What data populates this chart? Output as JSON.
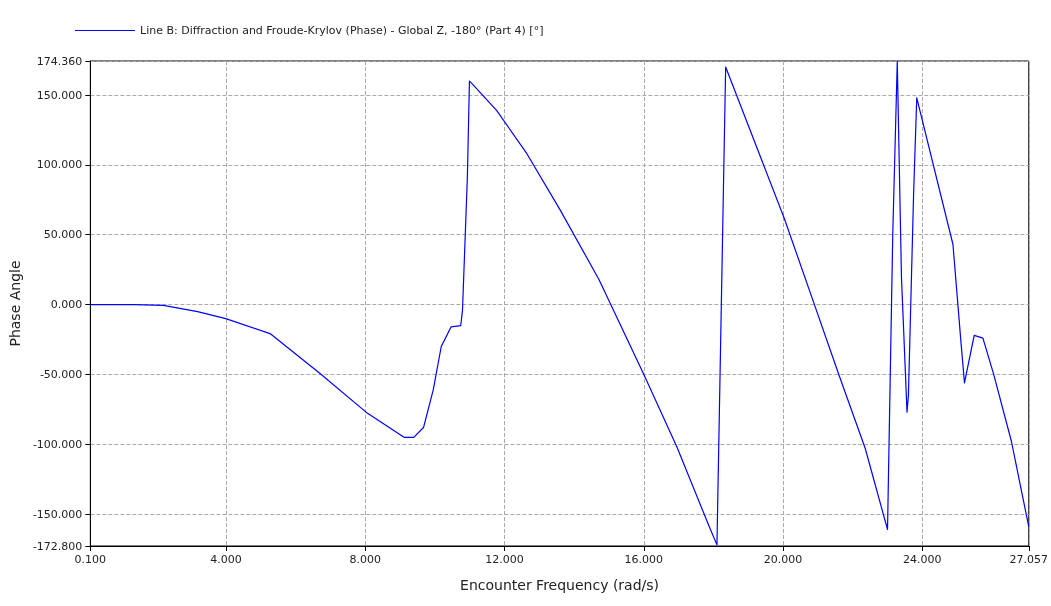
{
  "chart_data": {
    "type": "line",
    "xlabel": "Encounter Frequency (rad/s)",
    "ylabel": "Phase Angle",
    "legend": "top left",
    "grid": true,
    "marker": "none",
    "line_style": "solid",
    "xlim": [
      0.1,
      27.057
    ],
    "ylim": [
      -172.8,
      174.36
    ],
    "xticks": [
      {
        "value": 0.1,
        "label": "0.100"
      },
      {
        "value": 4,
        "label": "4.000"
      },
      {
        "value": 8,
        "label": "8.000"
      },
      {
        "value": 12,
        "label": "12.000"
      },
      {
        "value": 16,
        "label": "16.000"
      },
      {
        "value": 20,
        "label": "20.000"
      },
      {
        "value": 24,
        "label": "24.000"
      },
      {
        "value": 27.057,
        "label": "27.057"
      }
    ],
    "yticks": [
      {
        "value": -172.8,
        "label": "-172.800"
      },
      {
        "value": -150,
        "label": "-150.000"
      },
      {
        "value": -100,
        "label": "-100.000"
      },
      {
        "value": -50,
        "label": "-50.000"
      },
      {
        "value": 0,
        "label": "0.000"
      },
      {
        "value": 50,
        "label": "50.000"
      },
      {
        "value": 100,
        "label": "100.000"
      },
      {
        "value": 150,
        "label": "150.000"
      },
      {
        "value": 174.36,
        "label": "174.360"
      }
    ],
    "series": [
      {
        "name": "Line B: Diffraction and Froude-Krylov (Phase) - Global Z, -180° (Part 4) [°]",
        "color": "#0000ff",
        "x": [
          0.1,
          1.36,
          2.2,
          3.18,
          3.99,
          5.28,
          6.68,
          8.02,
          9.11,
          9.39,
          9.67,
          9.95,
          10.18,
          10.46,
          10.74,
          10.79,
          10.93,
          10.99,
          11.07,
          11.77,
          12.64,
          13.59,
          14.71,
          16.0,
          16.95,
          17.88,
          18.1,
          18.35,
          20.03,
          20.9,
          21.6,
          22.36,
          23.0,
          23.15,
          23.28,
          23.4,
          23.56,
          23.6,
          23.75,
          23.84,
          24.88,
          25.1,
          25.21,
          25.49,
          25.74,
          26.05,
          26.56,
          27.057
        ],
        "values": [
          0,
          0,
          -0.5,
          -5,
          -10,
          -21,
          -49,
          -77,
          -95,
          -95,
          -88,
          -61,
          -30,
          -16,
          -15,
          -4,
          91,
          160,
          158,
          139,
          108,
          68,
          18,
          -50,
          -102,
          -159,
          -172,
          170,
          62,
          0,
          -50,
          -103,
          -161,
          50,
          174,
          20,
          -77,
          -65,
          80,
          148,
          43,
          -24,
          -56,
          -22,
          -24,
          -50,
          -98,
          -159
        ]
      }
    ]
  }
}
